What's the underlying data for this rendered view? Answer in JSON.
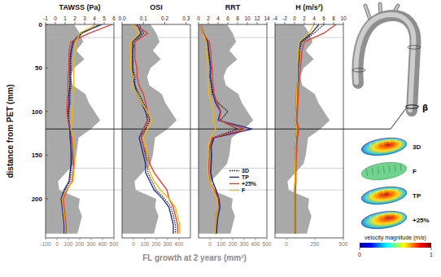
{
  "figure": {
    "y2_label": "FL growth at 2 years (mm²)",
    "reference_lines": [
      15,
      120,
      165,
      190
    ]
  },
  "chart_data": [
    {
      "type": "line",
      "orientation": "horizontal",
      "title": "TAWSS (Pa)",
      "x_label": "distance from PET (mm)",
      "x": [
        0,
        10,
        20,
        30,
        40,
        50,
        60,
        70,
        80,
        90,
        100,
        110,
        120,
        130,
        140,
        150,
        160,
        170,
        180,
        190,
        200,
        210,
        220,
        230,
        240
      ],
      "xlim": [
        0,
        245
      ],
      "xticks": [
        0,
        50,
        100,
        150,
        200
      ],
      "ylim": [
        -1,
        6
      ],
      "yticks": [
        -1,
        0,
        1,
        2,
        3,
        4,
        5,
        6
      ],
      "y2lim": [
        -100,
        500
      ],
      "y2ticks": [
        -100,
        0,
        100,
        200,
        300,
        400,
        500
      ],
      "series": [
        {
          "type": "area",
          "axis": "y2",
          "color": "#a9a9a9",
          "values": [
            150,
            200,
            230,
            170,
            240,
            150,
            120,
            140,
            250,
            280,
            330,
            380,
            300,
            190,
            180,
            170,
            150,
            80,
            10,
            20,
            200,
            190,
            220,
            200,
            180
          ]
        },
        {
          "name": "3D",
          "color": "#000000",
          "line_style": "dotted",
          "values": [
            4.5,
            2.8,
            1.9,
            1.7,
            1.6,
            1.6,
            1.6,
            1.6,
            1.5,
            1.5,
            1.4,
            1.4,
            1.5,
            1.6,
            1.6,
            1.7,
            1.7,
            1.6,
            1.5,
            1.0,
            0.7,
            0.8,
            0.9,
            1.0,
            1.0
          ]
        },
        {
          "name": "TP",
          "color": "#1b2a8f",
          "line_style": "solid",
          "values": [
            4.8,
            2.6,
            1.8,
            1.6,
            1.5,
            1.5,
            1.5,
            1.5,
            1.4,
            1.4,
            1.3,
            1.3,
            1.5,
            1.5,
            1.6,
            1.6,
            1.6,
            1.5,
            1.4,
            0.9,
            0.6,
            0.7,
            0.8,
            0.9,
            0.9
          ]
        },
        {
          "name": "+25%",
          "color": "#e23b30",
          "line_style": "solid",
          "values": [
            5.8,
            3.5,
            1.6,
            1.4,
            1.4,
            1.4,
            1.3,
            1.3,
            1.3,
            1.2,
            1.2,
            1.3,
            1.6,
            1.7,
            1.8,
            1.8,
            1.9,
            1.8,
            1.7,
            1.2,
            0.8,
            0.9,
            1.0,
            1.1,
            1.1
          ]
        },
        {
          "name": "F",
          "color": "#f2b705",
          "line_style": "solid",
          "values": [
            4.2,
            2.5,
            2.1,
            2.0,
            1.9,
            1.9,
            1.9,
            1.9,
            1.8,
            1.8,
            1.7,
            1.7,
            1.6,
            1.8,
            1.9,
            2.0,
            2.0,
            1.9,
            1.8,
            1.1,
            0.7,
            0.8,
            0.9,
            1.0,
            1.0
          ]
        }
      ]
    },
    {
      "type": "line",
      "orientation": "horizontal",
      "title": "OSI",
      "x": [
        0,
        10,
        20,
        30,
        40,
        50,
        60,
        70,
        80,
        90,
        100,
        110,
        120,
        130,
        140,
        150,
        160,
        170,
        180,
        190,
        200,
        210,
        220,
        230,
        240
      ],
      "xlim": [
        0,
        245
      ],
      "ylim": [
        0,
        0.32
      ],
      "yticks": [
        {
          "value": 0,
          "label": "0.0"
        },
        0.1,
        0.2,
        0.3
      ],
      "y2lim": [
        -100,
        500
      ],
      "y2ticks": [
        0,
        100,
        200,
        300,
        400
      ],
      "series": [
        {
          "type": "area",
          "axis": "y2",
          "color": "#a9a9a9",
          "values": [
            150,
            200,
            230,
            170,
            240,
            150,
            120,
            140,
            250,
            280,
            330,
            380,
            300,
            190,
            180,
            170,
            150,
            80,
            10,
            20,
            200,
            190,
            220,
            200,
            180
          ]
        },
        {
          "name": "3D",
          "color": "#000000",
          "line_style": "dotted",
          "values": [
            0.08,
            0.1,
            0.06,
            0.05,
            0.05,
            0.05,
            0.06,
            0.06,
            0.08,
            0.1,
            0.12,
            0.13,
            0.11,
            0.09,
            0.1,
            0.11,
            0.12,
            0.12,
            0.14,
            0.16,
            0.2,
            0.23,
            0.24,
            0.25,
            0.25
          ]
        },
        {
          "name": "TP",
          "color": "#1b2a8f",
          "line_style": "solid",
          "values": [
            0.07,
            0.09,
            0.05,
            0.05,
            0.05,
            0.05,
            0.05,
            0.06,
            0.07,
            0.09,
            0.11,
            0.12,
            0.1,
            0.08,
            0.09,
            0.1,
            0.11,
            0.11,
            0.13,
            0.15,
            0.19,
            0.22,
            0.23,
            0.24,
            0.24
          ]
        },
        {
          "name": "+25%",
          "color": "#e23b30",
          "line_style": "solid",
          "values": [
            0.06,
            0.12,
            0.06,
            0.06,
            0.06,
            0.07,
            0.07,
            0.08,
            0.1,
            0.11,
            0.12,
            0.12,
            0.1,
            0.09,
            0.1,
            0.12,
            0.13,
            0.15,
            0.18,
            0.21,
            0.22,
            0.24,
            0.25,
            0.26,
            0.26
          ]
        },
        {
          "name": "F",
          "color": "#f2b705",
          "line_style": "solid",
          "values": [
            0.05,
            0.08,
            0.04,
            0.04,
            0.04,
            0.04,
            0.05,
            0.05,
            0.07,
            0.09,
            0.12,
            0.14,
            0.12,
            0.1,
            0.11,
            0.12,
            0.12,
            0.13,
            0.15,
            0.18,
            0.22,
            0.25,
            0.26,
            0.27,
            0.27
          ]
        }
      ]
    },
    {
      "type": "line",
      "orientation": "horizontal",
      "title": "RRT",
      "legend": "right",
      "x": [
        0,
        10,
        20,
        30,
        40,
        50,
        60,
        70,
        80,
        90,
        100,
        110,
        120,
        130,
        140,
        150,
        160,
        170,
        180,
        190,
        200,
        210,
        220,
        230,
        240
      ],
      "xlim": [
        0,
        245
      ],
      "ylim": [
        0,
        14
      ],
      "yticks": [
        0,
        2,
        4,
        6,
        8,
        10,
        12,
        14
      ],
      "y2lim": [
        -100,
        500
      ],
      "y2ticks": [
        0,
        100,
        200,
        300,
        400,
        500
      ],
      "series": [
        {
          "type": "area",
          "axis": "y2",
          "color": "#a9a9a9",
          "values": [
            150,
            200,
            230,
            170,
            240,
            150,
            120,
            140,
            250,
            280,
            330,
            380,
            300,
            190,
            180,
            170,
            150,
            80,
            10,
            20,
            200,
            190,
            220,
            200,
            180
          ]
        },
        {
          "name": "3D",
          "color": "#000000",
          "line_style": "dotted",
          "values": [
            0.5,
            1.0,
            1.8,
            2.0,
            2.2,
            2.4,
            2.3,
            2.6,
            2.8,
            4.0,
            6.0,
            4.5,
            8.0,
            3.0,
            2.5,
            2.6,
            2.5,
            2.4,
            2.8,
            3.5,
            4.0,
            4.2,
            3.8,
            3.6,
            3.5
          ]
        },
        {
          "name": "TP",
          "color": "#1b2a8f",
          "line_style": "solid",
          "values": [
            0.5,
            1.0,
            1.9,
            2.1,
            2.3,
            2.5,
            2.4,
            2.7,
            3.0,
            3.5,
            4.5,
            4.0,
            11.0,
            3.2,
            2.6,
            2.7,
            2.6,
            2.5,
            2.9,
            3.6,
            4.2,
            4.4,
            4.0,
            3.8,
            3.7
          ]
        },
        {
          "name": "+25%",
          "color": "#e23b30",
          "line_style": "solid",
          "values": [
            0.4,
            0.8,
            2.2,
            2.5,
            2.6,
            2.8,
            2.8,
            3.0,
            3.2,
            3.8,
            4.6,
            4.2,
            9.5,
            2.8,
            2.3,
            2.2,
            2.1,
            2.0,
            2.3,
            3.2,
            4.0,
            4.0,
            3.6,
            3.5,
            3.4
          ]
        },
        {
          "name": "F",
          "color": "#f2b705",
          "line_style": "solid",
          "values": [
            0.5,
            0.9,
            1.6,
            1.7,
            1.8,
            1.9,
            1.9,
            2.0,
            2.1,
            2.6,
            3.0,
            3.0,
            3.5,
            2.4,
            2.0,
            2.0,
            1.9,
            1.9,
            2.2,
            3.0,
            3.8,
            4.0,
            3.7,
            3.5,
            3.4
          ]
        }
      ]
    },
    {
      "type": "line",
      "orientation": "horizontal",
      "title": "H (m/s²)",
      "x": [
        0,
        10,
        20,
        30,
        40,
        50,
        60,
        70,
        80,
        90,
        100,
        110,
        120,
        130,
        140,
        150,
        160,
        170,
        180,
        190,
        200,
        210,
        220,
        230,
        240
      ],
      "xlim": [
        0,
        245
      ],
      "ylim": [
        -4,
        10
      ],
      "yticks": [
        -4,
        -2,
        0,
        2,
        4,
        6,
        8,
        10
      ],
      "y2lim": [
        -100,
        500
      ],
      "y2ticks": [
        0,
        250,
        500
      ],
      "series": [
        {
          "type": "area",
          "axis": "y2",
          "color": "#a9a9a9",
          "values": [
            150,
            200,
            230,
            170,
            240,
            150,
            120,
            140,
            250,
            280,
            330,
            380,
            300,
            190,
            180,
            170,
            150,
            80,
            10,
            20,
            200,
            190,
            220,
            200,
            180
          ]
        },
        {
          "name": "3D",
          "color": "#000000",
          "line_style": "dotted",
          "values": [
            6.0,
            4.0,
            1.5,
            1.0,
            1.0,
            0.8,
            0.8,
            0.6,
            0.5,
            0.5,
            0.4,
            0.3,
            0.6,
            0.4,
            0.3,
            0.3,
            0.2,
            0.2,
            0.2,
            0.1,
            0.1,
            0.1,
            0.1,
            0.1,
            0.1
          ]
        },
        {
          "name": "TP",
          "color": "#1b2a8f",
          "line_style": "solid",
          "values": [
            5.0,
            3.5,
            1.2,
            0.9,
            0.9,
            0.7,
            0.7,
            0.5,
            0.4,
            0.4,
            0.3,
            0.2,
            0.5,
            0.3,
            0.2,
            0.2,
            0.1,
            0.1,
            0.1,
            0.0,
            0.0,
            0.0,
            0.0,
            0.0,
            0.0
          ]
        },
        {
          "name": "+25%",
          "color": "#e23b30",
          "line_style": "solid",
          "values": [
            8.5,
            6.0,
            2.0,
            1.5,
            1.4,
            1.2,
            1.1,
            0.9,
            0.8,
            0.7,
            0.6,
            0.5,
            0.9,
            0.6,
            0.5,
            0.4,
            0.3,
            0.3,
            0.3,
            0.2,
            0.2,
            0.2,
            0.2,
            0.2,
            0.2
          ]
        },
        {
          "name": "F",
          "color": "#f2b705",
          "line_style": "solid",
          "values": [
            4.0,
            3.0,
            1.0,
            0.8,
            0.7,
            0.6,
            0.6,
            0.5,
            0.4,
            0.4,
            0.3,
            0.2,
            0.5,
            0.3,
            0.2,
            0.2,
            0.1,
            0.1,
            0.1,
            0.0,
            0.0,
            0.0,
            0.0,
            0.0,
            0.0
          ]
        }
      ]
    }
  ],
  "inset": {
    "section_label": "β",
    "views": [
      "3D",
      "F",
      "TP",
      "+25%"
    ],
    "colorbar": {
      "title": "velocity magnitude (m/s)",
      "range": [
        0,
        1
      ],
      "ticks": [
        0,
        1
      ]
    }
  }
}
